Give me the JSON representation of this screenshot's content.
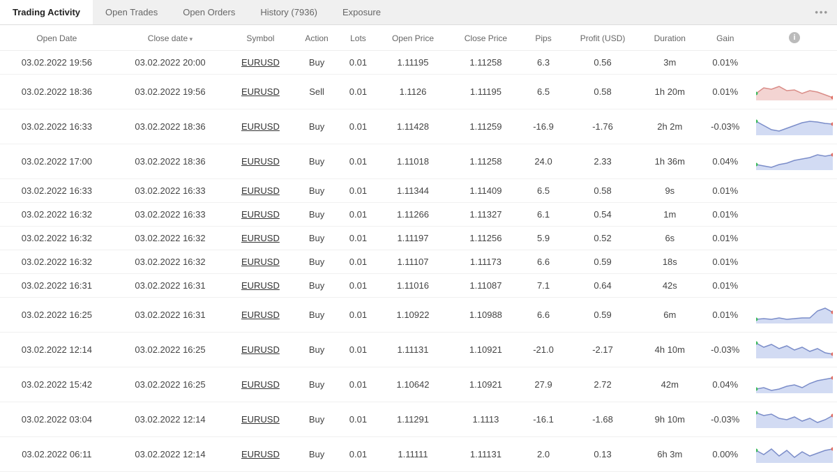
{
  "tabs": {
    "items": [
      {
        "label": "Trading Activity",
        "active": true
      },
      {
        "label": "Open Trades"
      },
      {
        "label": "Open Orders"
      },
      {
        "label": "History (7936)"
      },
      {
        "label": "Exposure"
      }
    ]
  },
  "columns": {
    "openDate": "Open Date",
    "closeDate": "Close date",
    "symbol": "Symbol",
    "action": "Action",
    "lots": "Lots",
    "openPrice": "Open Price",
    "closePrice": "Close Price",
    "pips": "Pips",
    "profit": "Profit (USD)",
    "duration": "Duration",
    "gain": "Gain"
  },
  "colors": {
    "pos": "#27a84a",
    "neg": "#e85a4f",
    "sparkFillBlue": "#c7d2f0",
    "sparkStrokeBlue": "#7b8dc9",
    "sparkFillRed": "#f0c9c7",
    "sparkStrokeRed": "#d98c87",
    "dotGreen": "#3fbb5f",
    "dotRed": "#e06a5f"
  },
  "rows": [
    {
      "openDate": "03.02.2022 19:56",
      "closeDate": "03.02.2022 20:00",
      "symbol": "EURUSD",
      "action": "Buy",
      "lots": "0.01",
      "openPrice": "1.11195",
      "closePrice": "1.11258",
      "pips": "6.3",
      "pipsCls": "pos",
      "profit": "0.56",
      "profitCls": "pos",
      "duration": "3m",
      "gain": "0.01%",
      "gainCls": "pos",
      "spark": null
    },
    {
      "openDate": "03.02.2022 18:36",
      "closeDate": "03.02.2022 19:56",
      "symbol": "EURUSD",
      "action": "Sell",
      "lots": "0.01",
      "openPrice": "1.1126",
      "closePrice": "1.11195",
      "pips": "6.5",
      "pipsCls": "pos",
      "profit": "0.58",
      "profitCls": "pos",
      "duration": "1h 20m",
      "gain": "0.01%",
      "gainCls": "pos",
      "spark": {
        "color": "red",
        "pts": [
          18,
          10,
          12,
          8,
          14,
          13,
          18,
          14,
          16,
          20,
          24
        ]
      }
    },
    {
      "openDate": "03.02.2022 16:33",
      "closeDate": "03.02.2022 18:36",
      "symbol": "EURUSD",
      "action": "Buy",
      "lots": "0.01",
      "openPrice": "1.11428",
      "closePrice": "1.11259",
      "pips": "-16.9",
      "pipsCls": "neg",
      "profit": "-1.76",
      "profitCls": "neg",
      "duration": "2h 2m",
      "gain": "-0.03%",
      "gainCls": "neg",
      "spark": {
        "color": "blue",
        "pts": [
          8,
          14,
          20,
          22,
          18,
          14,
          10,
          8,
          9,
          11,
          12
        ]
      }
    },
    {
      "openDate": "03.02.2022 17:00",
      "closeDate": "03.02.2022 18:36",
      "symbol": "EURUSD",
      "action": "Buy",
      "lots": "0.01",
      "openPrice": "1.11018",
      "closePrice": "1.11258",
      "pips": "24.0",
      "pipsCls": "pos",
      "profit": "2.33",
      "profitCls": "pos",
      "duration": "1h 36m",
      "gain": "0.04%",
      "gainCls": "pos",
      "spark": {
        "color": "blue",
        "pts": [
          20,
          22,
          24,
          20,
          18,
          14,
          12,
          10,
          6,
          8,
          6
        ]
      }
    },
    {
      "openDate": "03.02.2022 16:33",
      "closeDate": "03.02.2022 16:33",
      "symbol": "EURUSD",
      "action": "Buy",
      "lots": "0.01",
      "openPrice": "1.11344",
      "closePrice": "1.11409",
      "pips": "6.5",
      "pipsCls": "pos",
      "profit": "0.58",
      "profitCls": "pos",
      "duration": "9s",
      "gain": "0.01%",
      "gainCls": "pos",
      "spark": null
    },
    {
      "openDate": "03.02.2022 16:32",
      "closeDate": "03.02.2022 16:33",
      "symbol": "EURUSD",
      "action": "Buy",
      "lots": "0.01",
      "openPrice": "1.11266",
      "closePrice": "1.11327",
      "pips": "6.1",
      "pipsCls": "pos",
      "profit": "0.54",
      "profitCls": "pos",
      "duration": "1m",
      "gain": "0.01%",
      "gainCls": "pos",
      "spark": null
    },
    {
      "openDate": "03.02.2022 16:32",
      "closeDate": "03.02.2022 16:32",
      "symbol": "EURUSD",
      "action": "Buy",
      "lots": "0.01",
      "openPrice": "1.11197",
      "closePrice": "1.11256",
      "pips": "5.9",
      "pipsCls": "pos",
      "profit": "0.52",
      "profitCls": "pos",
      "duration": "6s",
      "gain": "0.01%",
      "gainCls": "pos",
      "spark": null
    },
    {
      "openDate": "03.02.2022 16:32",
      "closeDate": "03.02.2022 16:32",
      "symbol": "EURUSD",
      "action": "Buy",
      "lots": "0.01",
      "openPrice": "1.11107",
      "closePrice": "1.11173",
      "pips": "6.6",
      "pipsCls": "pos",
      "profit": "0.59",
      "profitCls": "pos",
      "duration": "18s",
      "gain": "0.01%",
      "gainCls": "pos",
      "spark": null
    },
    {
      "openDate": "03.02.2022 16:31",
      "closeDate": "03.02.2022 16:31",
      "symbol": "EURUSD",
      "action": "Buy",
      "lots": "0.01",
      "openPrice": "1.11016",
      "closePrice": "1.11087",
      "pips": "7.1",
      "pipsCls": "pos",
      "profit": "0.64",
      "profitCls": "pos",
      "duration": "42s",
      "gain": "0.01%",
      "gainCls": "pos",
      "spark": null
    },
    {
      "openDate": "03.02.2022 16:25",
      "closeDate": "03.02.2022 16:31",
      "symbol": "EURUSD",
      "action": "Buy",
      "lots": "0.01",
      "openPrice": "1.10922",
      "closePrice": "1.10988",
      "pips": "6.6",
      "pipsCls": "pos",
      "profit": "0.59",
      "profitCls": "pos",
      "duration": "6m",
      "gain": "0.01%",
      "gainCls": "pos",
      "spark": {
        "color": "blue",
        "pts": [
          22,
          21,
          22,
          20,
          22,
          21,
          20,
          20,
          10,
          6,
          12
        ]
      }
    },
    {
      "openDate": "03.02.2022 12:14",
      "closeDate": "03.02.2022 16:25",
      "symbol": "EURUSD",
      "action": "Buy",
      "lots": "0.01",
      "openPrice": "1.11131",
      "closePrice": "1.10921",
      "pips": "-21.0",
      "pipsCls": "neg",
      "profit": "-2.17",
      "profitCls": "neg",
      "duration": "4h 10m",
      "gain": "-0.03%",
      "gainCls": "neg",
      "spark": {
        "color": "blue",
        "pts": [
          6,
          12,
          8,
          14,
          10,
          16,
          12,
          18,
          14,
          20,
          22
        ]
      }
    },
    {
      "openDate": "03.02.2022 15:42",
      "closeDate": "03.02.2022 16:25",
      "symbol": "EURUSD",
      "action": "Buy",
      "lots": "0.01",
      "openPrice": "1.10642",
      "closePrice": "1.10921",
      "pips": "27.9",
      "pipsCls": "pos",
      "profit": "2.72",
      "profitCls": "pos",
      "duration": "42m",
      "gain": "0.04%",
      "gainCls": "pos",
      "spark": {
        "color": "blue",
        "pts": [
          22,
          20,
          24,
          22,
          18,
          16,
          20,
          14,
          10,
          8,
          6
        ]
      }
    },
    {
      "openDate": "03.02.2022 03:04",
      "closeDate": "03.02.2022 12:14",
      "symbol": "EURUSD",
      "action": "Buy",
      "lots": "0.01",
      "openPrice": "1.11291",
      "closePrice": "1.1113",
      "pips": "-16.1",
      "pipsCls": "neg",
      "profit": "-1.68",
      "profitCls": "neg",
      "duration": "9h 10m",
      "gain": "-0.03%",
      "gainCls": "neg",
      "spark": {
        "color": "blue",
        "pts": [
          6,
          10,
          8,
          14,
          16,
          12,
          18,
          14,
          20,
          16,
          10
        ]
      }
    },
    {
      "openDate": "03.02.2022 06:11",
      "closeDate": "03.02.2022 12:14",
      "symbol": "EURUSD",
      "action": "Buy",
      "lots": "0.01",
      "openPrice": "1.11111",
      "closePrice": "1.11131",
      "pips": "2.0",
      "pipsCls": "pos",
      "profit": "0.13",
      "profitCls": "pos",
      "duration": "6h 3m",
      "gain": "0.00%",
      "gainCls": "pos",
      "spark": {
        "color": "blue",
        "pts": [
          10,
          16,
          8,
          18,
          10,
          20,
          12,
          18,
          14,
          10,
          8
        ]
      }
    }
  ]
}
